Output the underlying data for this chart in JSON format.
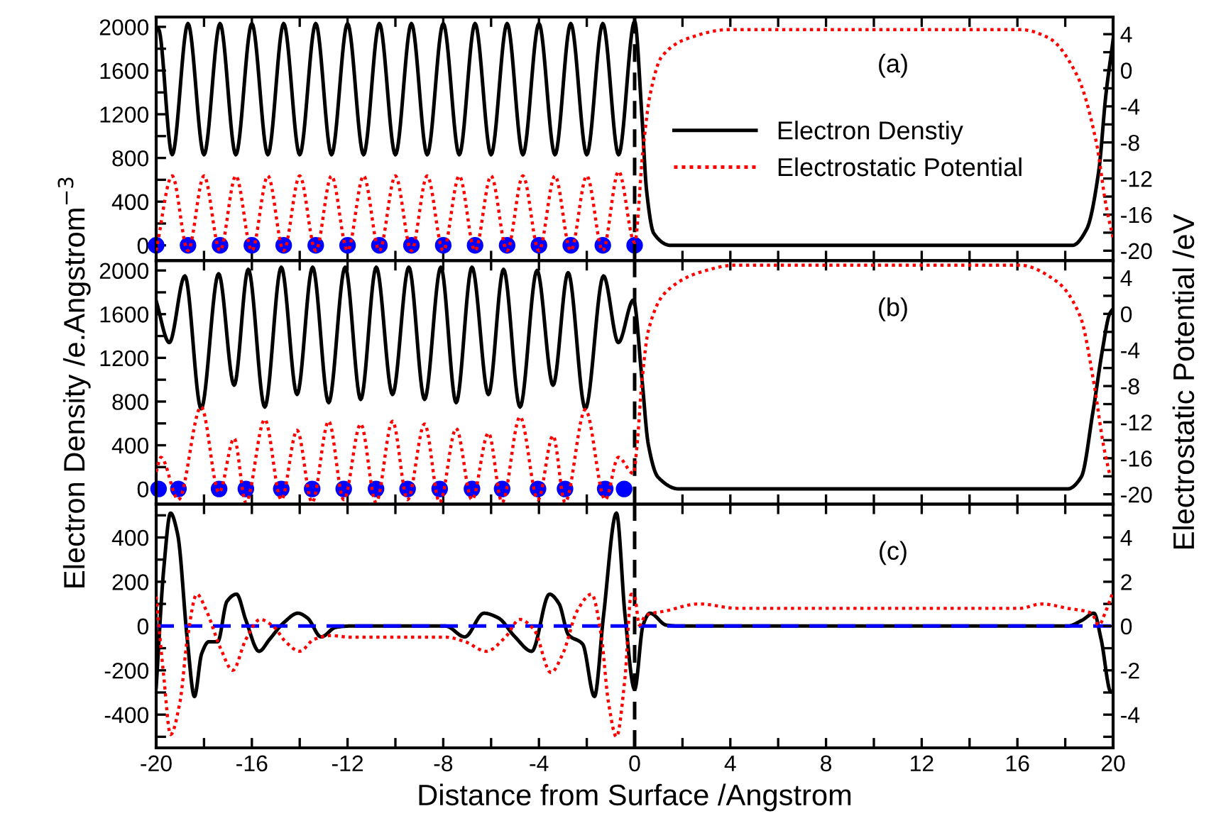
{
  "chart_data": [
    {
      "type": "line",
      "annotations": [
        "(a)"
      ],
      "legend": "right",
      "tick_labels": "y",
      "grid": false,
      "xlim": [
        -20,
        20
      ],
      "xticks": [
        -20,
        {
          "value": -18,
          "label": null
        },
        -16,
        {
          "value": -14,
          "label": null
        },
        -12,
        {
          "value": -10,
          "label": null
        },
        -8,
        {
          "value": -6,
          "label": null
        },
        -4,
        {
          "value": -2,
          "label": null
        },
        0,
        {
          "value": 2,
          "label": null
        },
        4,
        {
          "value": 6,
          "label": null
        },
        8,
        {
          "value": 10,
          "label": null
        },
        12,
        {
          "value": 14,
          "label": null
        },
        16,
        {
          "value": 18,
          "label": null
        },
        20
      ],
      "ylim": [
        -140,
        2090
      ],
      "yticks": [
        0,
        {
          "value": 200,
          "label": null
        },
        400,
        {
          "value": 600,
          "label": null
        },
        800,
        {
          "value": 1000,
          "label": null
        },
        1200,
        {
          "value": 1400,
          "label": null
        },
        1600,
        {
          "value": 1800,
          "label": null
        },
        2000
      ],
      "y2lim": [
        -21.1,
        5.9
      ],
      "y2ticks": [
        -20,
        {
          "value": -18,
          "label": null
        },
        -16,
        {
          "value": -14,
          "label": null
        },
        -12,
        {
          "value": -10,
          "label": null
        },
        -8,
        {
          "value": -6,
          "label": null
        },
        -4,
        {
          "value": -2,
          "label": null
        },
        0,
        {
          "value": 2,
          "label": null
        },
        4
      ],
      "ref_lines": [
        {
          "axis": "x",
          "value": 0,
          "color": "#000000",
          "line_style": "dashed"
        }
      ],
      "series": [
        {
          "name": "Electron Denstiy",
          "color": "#000000",
          "line_style": "solid",
          "x": [
            -20,
            -19.9,
            -19.33,
            -18.67,
            -18,
            -17.33,
            -16.67,
            -16,
            -15.33,
            -14.67,
            -14,
            -13.33,
            -12.67,
            -12,
            -11.33,
            -10.67,
            -10,
            -9.33,
            -8.67,
            -8,
            -7.33,
            -6.67,
            -6,
            -5.33,
            -4.67,
            -4,
            -3.33,
            -2.67,
            -2,
            -1.33,
            -0.67,
            0,
            0.3,
            0.5,
            0.8,
            1.5,
            18.3,
            18.9,
            19.4,
            19.7,
            20
          ],
          "values": [
            1990,
            1980,
            830,
            2030,
            830,
            2030,
            830,
            2030,
            830,
            2030,
            830,
            2030,
            830,
            2030,
            830,
            2030,
            830,
            2030,
            830,
            2030,
            830,
            2030,
            830,
            2030,
            830,
            2030,
            830,
            2030,
            830,
            2030,
            830,
            2050,
            1200,
            500,
            110,
            0,
            0,
            150,
            680,
            1380,
            1880
          ]
        },
        {
          "name": "Electrostatic Potential",
          "axis": "y2",
          "color": "#ff0000",
          "line_style": "dotted",
          "x": [
            -20,
            -19.33,
            -18.67,
            -18,
            -17.33,
            -16.67,
            -16,
            -15.33,
            -14.67,
            -14,
            -13.33,
            -12.67,
            -12,
            -11.33,
            -10.67,
            -10,
            -9.33,
            -8.67,
            -8,
            -7.33,
            -6.67,
            -6,
            -5.33,
            -4.67,
            -4,
            -3.33,
            -2.67,
            -2,
            -1.33,
            -0.67,
            0,
            0.34,
            0.64,
            1.13,
            2.3,
            3.9,
            16.15,
            17.3,
            18.5,
            19.3,
            19.7,
            20
          ],
          "values": [
            -20,
            -11.7,
            -20,
            -11.7,
            -20,
            -11.7,
            -20,
            -11.7,
            -20,
            -11.7,
            -20,
            -11.7,
            -20,
            -11.7,
            -20,
            -11.7,
            -20,
            -11.7,
            -20,
            -11.7,
            -20,
            -11.7,
            -20,
            -11.7,
            -20,
            -11.7,
            -20,
            -11.7,
            -20,
            -11.2,
            -19.1,
            -9.1,
            -2.8,
            1.5,
            3.6,
            4.5,
            4.5,
            3.6,
            -0.6,
            -8,
            -14.9,
            -18.6
          ]
        },
        {
          "type": "scatter",
          "marker": "circle",
          "color": "#0000ff",
          "x": [
            -20,
            -18.67,
            -17.33,
            -16,
            -14.67,
            -13.33,
            -12,
            -10.67,
            -9.33,
            -8,
            -6.67,
            -5.33,
            -4,
            -2.67,
            -1.33,
            0
          ],
          "values": [
            0,
            0,
            0,
            0,
            0,
            0,
            0,
            0,
            0,
            0,
            0,
            0,
            0,
            0,
            0,
            0
          ]
        }
      ]
    },
    {
      "type": "line",
      "annotations": [
        "(b)"
      ],
      "tick_labels": "y",
      "grid": false,
      "ylabel": "Electron Density /e.Angstrom$^{−3}$",
      "y2label": "Electrostatic Potential /eV",
      "xlim": [
        -20,
        20
      ],
      "xticks": [
        -20,
        {
          "value": -18,
          "label": null
        },
        -16,
        {
          "value": -14,
          "label": null
        },
        -12,
        {
          "value": -10,
          "label": null
        },
        -8,
        {
          "value": -6,
          "label": null
        },
        -4,
        {
          "value": -2,
          "label": null
        },
        0,
        {
          "value": 2,
          "label": null
        },
        4,
        {
          "value": 6,
          "label": null
        },
        8,
        {
          "value": 10,
          "label": null
        },
        12,
        {
          "value": 14,
          "label": null
        },
        16,
        {
          "value": 18,
          "label": null
        },
        20
      ],
      "ylim": [
        -140,
        2090
      ],
      "yticks": [
        0,
        {
          "value": 200,
          "label": null
        },
        400,
        {
          "value": 600,
          "label": null
        },
        800,
        {
          "value": 1000,
          "label": null
        },
        1200,
        {
          "value": 1400,
          "label": null
        },
        1600,
        {
          "value": 1800,
          "label": null
        },
        2000
      ],
      "y2lim": [
        -21.1,
        5.9
      ],
      "y2ticks": [
        -20,
        {
          "value": -18,
          "label": null
        },
        -16,
        {
          "value": -14,
          "label": null
        },
        -12,
        {
          "value": -10,
          "label": null
        },
        -8,
        {
          "value": -6,
          "label": null
        },
        -4,
        {
          "value": -2,
          "label": null
        },
        0,
        {
          "value": 2,
          "label": null
        },
        4
      ],
      "ref_lines": [
        {
          "axis": "x",
          "value": 0,
          "color": "#000000",
          "line_style": "dashed"
        }
      ],
      "series": [
        {
          "color": "#000000",
          "line_style": "solid",
          "x": [
            -20,
            -19.45,
            -18.8,
            -18.12,
            -17.39,
            -16.74,
            -16.15,
            -15.46,
            -14.77,
            -14.11,
            -13.46,
            -12.79,
            -12.1,
            -11.45,
            -10.8,
            -10.12,
            -9.44,
            -8.78,
            -8.1,
            -7.46,
            -6.8,
            -6.11,
            -5.48,
            -4.79,
            -4.08,
            -3.41,
            -2.78,
            -2.06,
            -1.3,
            -0.68,
            -0.05,
            0.3,
            0.57,
            0.97,
            1.86,
            18.1,
            18.67,
            19.16,
            19.56,
            19.85,
            20
          ],
          "values": [
            1720,
            1340,
            1950,
            735,
            1970,
            950,
            2010,
            750,
            2030,
            865,
            2030,
            790,
            2030,
            820,
            2030,
            865,
            2030,
            820,
            2030,
            790,
            2030,
            865,
            2010,
            750,
            2000,
            950,
            1980,
            735,
            1950,
            1340,
            1730,
            1020,
            410,
            110,
            0,
            0,
            110,
            710,
            1280,
            1600,
            1650
          ]
        },
        {
          "axis": "y2",
          "color": "#ff0000",
          "line_style": "dotted",
          "x": [
            -20,
            -19.8,
            -19.07,
            -18.12,
            -17.37,
            -16.74,
            -16.25,
            -15.46,
            -14.77,
            -14.11,
            -13.48,
            -12.79,
            -12.16,
            -11.45,
            -10.81,
            -10.12,
            -9.49,
            -8.78,
            -8.15,
            -7.46,
            -6.8,
            -6.11,
            -5.54,
            -4.79,
            -4.04,
            -3.41,
            -2.91,
            -2.06,
            -1.23,
            -0.68,
            -0.05,
            0.1,
            0.3,
            0.57,
            1.26,
            2.84,
            4.2,
            16.1,
            17.64,
            18.63,
            19.2,
            19.6,
            19.85
          ],
          "values": [
            -17.5,
            -15.9,
            -20.6,
            -10.3,
            -19.8,
            -13.8,
            -20.9,
            -11.7,
            -20.6,
            -12.9,
            -20.9,
            -11.9,
            -20.6,
            -12.2,
            -20.9,
            -11.9,
            -20.6,
            -12.2,
            -20.9,
            -12.7,
            -20.6,
            -13.2,
            -20.9,
            -11.4,
            -20.6,
            -13.5,
            -20.9,
            -10.6,
            -20.6,
            -15.9,
            -17.7,
            -14.6,
            -7.7,
            -1.9,
            2.3,
            4.7,
            5.4,
            5.4,
            3.6,
            -0.3,
            -7.7,
            -14.6,
            -17.7
          ]
        },
        {
          "type": "scatter",
          "marker": "circle",
          "color": "#0000ff",
          "x": [
            -19.9,
            -19.07,
            -17.37,
            -16.25,
            -14.77,
            -13.48,
            -12.16,
            -10.81,
            -9.49,
            -8.15,
            -6.8,
            -5.54,
            -4.04,
            -2.91,
            -1.23,
            -0.44
          ],
          "values": [
            0,
            0,
            0,
            0,
            0,
            0,
            0,
            0,
            0,
            0,
            0,
            0,
            0,
            0,
            0,
            0
          ]
        }
      ]
    },
    {
      "type": "line",
      "annotations": [
        "(c)"
      ],
      "grid": false,
      "xlabel": "Distance from Surface /Angstrom",
      "xlim": [
        -20,
        20
      ],
      "xticks": [
        -20,
        {
          "value": -18,
          "label": null
        },
        -16,
        {
          "value": -14,
          "label": null
        },
        -12,
        {
          "value": -10,
          "label": null
        },
        -8,
        {
          "value": -6,
          "label": null
        },
        -4,
        {
          "value": -2,
          "label": null
        },
        0,
        {
          "value": 2,
          "label": null
        },
        4,
        {
          "value": 6,
          "label": null
        },
        8,
        {
          "value": 10,
          "label": null
        },
        12,
        {
          "value": 14,
          "label": null
        },
        16,
        {
          "value": 18,
          "label": null
        },
        20
      ],
      "ylim": [
        -550,
        550
      ],
      "yticks": [
        {
          "value": -500,
          "label": null
        },
        -400,
        {
          "value": -300,
          "label": null
        },
        -200,
        {
          "value": -100,
          "label": null
        },
        0,
        {
          "value": 100,
          "label": null
        },
        200,
        {
          "value": 300,
          "label": null
        },
        400,
        {
          "value": 500,
          "label": null
        }
      ],
      "y2lim": [
        -5.5,
        5.5
      ],
      "y2ticks": [
        {
          "value": -5,
          "label": null
        },
        -4,
        {
          "value": -3,
          "label": null
        },
        -2,
        {
          "value": -1,
          "label": null
        },
        0,
        {
          "value": 1,
          "label": null
        },
        2,
        {
          "value": 3,
          "label": null
        },
        4,
        {
          "value": 5,
          "label": null
        }
      ],
      "ref_lines": [
        {
          "axis": "x",
          "value": 0,
          "color": "#000000",
          "line_style": "dashed"
        },
        {
          "axis": "y",
          "value": 0,
          "color": "#0000ff",
          "line_style": "dashed"
        }
      ],
      "series": [
        {
          "color": "#000000",
          "line_style": "solid",
          "x": [
            -20,
            -19.68,
            -19.4,
            -19.1,
            -18.7,
            -18.4,
            -18.1,
            -17.8,
            -17.43,
            -17.04,
            -16.64,
            -16.25,
            -15.7,
            -15.26,
            -14.67,
            -14.07,
            -13.68,
            -13.1,
            -12.5,
            -11.9,
            -7.9,
            -7.1,
            -6.3,
            -5.7,
            -5.0,
            -4.3,
            -3.56,
            -3.16,
            -2.77,
            -2.17,
            -1.68,
            -1.3,
            -0.76,
            -0.4,
            0,
            0.35,
            0.64,
            1.33,
            1.9,
            18.1,
            18.7,
            19.2,
            19.5,
            19.9,
            20
          ],
          "values": [
            -275,
            262,
            510,
            413,
            -60,
            -318,
            -125,
            -71,
            -71,
            112,
            144,
            26,
            -114,
            -60,
            15,
            58,
            37,
            -49,
            -6,
            0,
            0,
            -49,
            58,
            37,
            -49,
            -114,
            144,
            101,
            -39,
            -82,
            -318,
            47,
            510,
            47,
            -286,
            4,
            58,
            4,
            0,
            0,
            26,
            58,
            -60,
            -297,
            -300
          ]
        },
        {
          "axis": "y2",
          "color": "#ff0000",
          "line_style": "dotted",
          "x": [
            -20,
            -19.68,
            -19.4,
            -19.0,
            -18.7,
            -18.3,
            -17.9,
            -17.3,
            -16.8,
            -16.25,
            -15.65,
            -15.06,
            -14.6,
            -14.0,
            -13.4,
            -12.7,
            -11.9,
            -7.9,
            -7.1,
            -6.2,
            -5.4,
            -4.8,
            -4.2,
            -3.5,
            -3.0,
            -2.4,
            -1.8,
            -1.4,
            -1.1,
            -0.76,
            -0.4,
            -0.14,
            0,
            0.2,
            0.45,
            1.33,
            2.7,
            4.3,
            16.1,
            17.0,
            18.1,
            19.1,
            19.4,
            19.7,
            20
          ],
          "values": [
            1.33,
            -2.3,
            -4.9,
            -3.4,
            -0.6,
            1.44,
            0.69,
            -1.03,
            -2.0,
            -0.6,
            0.3,
            -0.06,
            -0.7,
            -1.14,
            -0.6,
            -0.43,
            -0.5,
            -0.5,
            -0.7,
            -1.14,
            -0.5,
            0.3,
            -0.17,
            -2.1,
            -1.25,
            0.69,
            1.44,
            -0.39,
            -3.4,
            -5.0,
            -2.3,
            1.44,
            1.33,
            0.04,
            0.47,
            0.69,
            1.0,
            0.8,
            0.8,
            1.0,
            0.8,
            0.58,
            0.04,
            0.69,
            1.55
          ]
        }
      ]
    }
  ]
}
